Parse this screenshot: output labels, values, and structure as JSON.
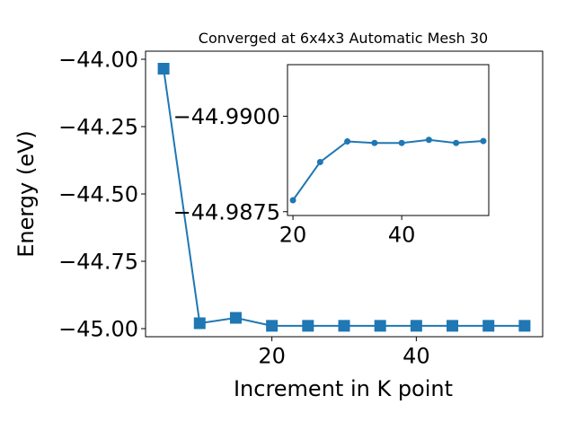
{
  "chart_data": [
    {
      "type": "line",
      "title": "Converged at 6x4x3 Automatic Mesh 30",
      "xlabel": "Increment in K point",
      "ylabel": "Energy (eV)",
      "xlim": [
        2.5,
        57.5
      ],
      "ylim": [
        -45.03,
        -43.97
      ],
      "x_ticks": [
        "20",
        "40"
      ],
      "y_ticks": [
        "−44.00",
        "−44.25",
        "−44.50",
        "−44.75",
        "−45.00"
      ],
      "grid": false,
      "series": [
        {
          "marker": "square",
          "color": "#1f77b4",
          "x": [
            5,
            10,
            15,
            20,
            25,
            30,
            35,
            40,
            45,
            50,
            55
          ],
          "y": [
            -44.035,
            -44.98,
            -44.96,
            -44.9895,
            -44.9895,
            -44.9895,
            -44.9895,
            -44.9895,
            -44.9895,
            -44.9895,
            -44.9895
          ]
        }
      ]
    },
    {
      "type": "line",
      "title": "",
      "xlabel": "",
      "ylabel": "",
      "xlim": [
        19,
        56
      ],
      "ylim": [
        -44.9874,
        -44.99135
      ],
      "x_ticks": [
        "20",
        "40"
      ],
      "y_ticks": [
        "−44.9900",
        "−44.9875"
      ],
      "grid": false,
      "series": [
        {
          "marker": "circle",
          "color": "#1f77b4",
          "x": [
            20,
            25,
            30,
            35,
            40,
            45,
            50,
            55
          ],
          "y": [
            -44.9878,
            -44.9888,
            -44.98934,
            -44.9893,
            -44.9893,
            -44.98938,
            -44.9893,
            -44.98935
          ]
        }
      ]
    }
  ]
}
